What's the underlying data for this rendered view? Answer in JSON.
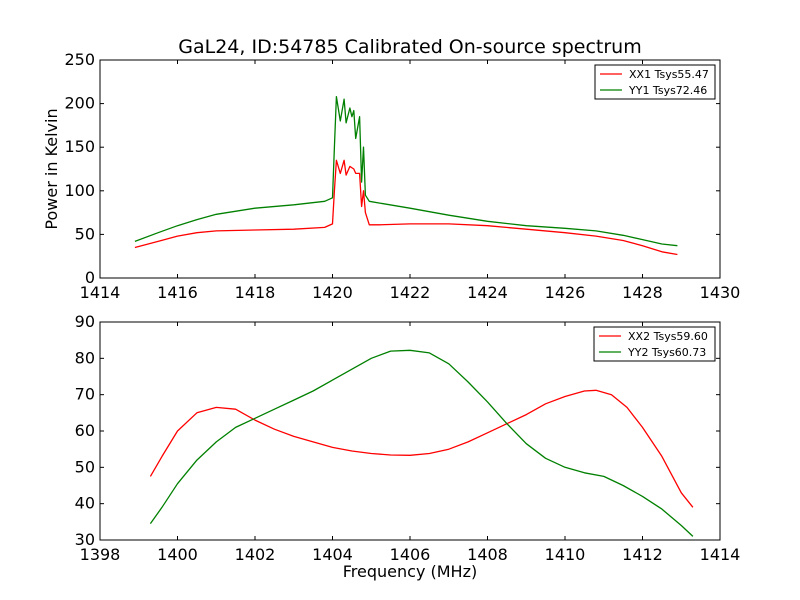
{
  "chart_data": [
    {
      "type": "line",
      "title": "GaL24, ID:54785 Calibrated On-source spectrum",
      "xlabel": "",
      "ylabel": "Power in Kelvin",
      "xlim": [
        1414,
        1430
      ],
      "ylim": [
        0,
        250
      ],
      "xticks": [
        1414,
        1416,
        1418,
        1420,
        1422,
        1424,
        1426,
        1428,
        1430
      ],
      "yticks": [
        0,
        50,
        100,
        150,
        200,
        250
      ],
      "grid": false,
      "legend_position": "top-right",
      "series": [
        {
          "name": "XX1 Tsys55.47",
          "color": "#ff0000",
          "x": [
            1414.9,
            1415.5,
            1416.0,
            1416.5,
            1417.0,
            1418.0,
            1419.0,
            1419.8,
            1420.0,
            1420.05,
            1420.1,
            1420.2,
            1420.3,
            1420.35,
            1420.45,
            1420.55,
            1420.6,
            1420.7,
            1420.75,
            1420.8,
            1420.85,
            1420.95,
            1421.2,
            1422.0,
            1423.0,
            1424.0,
            1425.0,
            1426.0,
            1426.8,
            1427.5,
            1428.0,
            1428.5,
            1428.9
          ],
          "y": [
            35,
            42,
            48,
            52,
            54,
            55,
            56,
            58,
            62,
            100,
            135,
            120,
            135,
            118,
            128,
            125,
            120,
            120,
            82,
            100,
            75,
            61,
            61,
            62,
            62,
            60,
            56,
            52,
            48,
            43,
            37,
            30,
            27
          ]
        },
        {
          "name": "YY1 Tsys72.46",
          "color": "#008000",
          "x": [
            1414.9,
            1415.5,
            1416.0,
            1416.5,
            1417.0,
            1418.0,
            1419.0,
            1419.8,
            1420.0,
            1420.05,
            1420.1,
            1420.2,
            1420.3,
            1420.35,
            1420.45,
            1420.5,
            1420.55,
            1420.6,
            1420.7,
            1420.75,
            1420.8,
            1420.85,
            1420.95,
            1421.2,
            1422.0,
            1423.0,
            1424.0,
            1425.0,
            1426.0,
            1426.8,
            1427.5,
            1428.0,
            1428.5,
            1428.9
          ],
          "y": [
            42,
            52,
            60,
            67,
            73,
            80,
            84,
            88,
            92,
            150,
            208,
            180,
            205,
            178,
            195,
            185,
            192,
            160,
            185,
            110,
            150,
            95,
            88,
            86,
            80,
            72,
            65,
            60,
            57,
            54,
            49,
            44,
            39,
            37
          ]
        }
      ]
    },
    {
      "type": "line",
      "title": "",
      "xlabel": "Frequency (MHz)",
      "ylabel": "",
      "xlim": [
        1398,
        1414
      ],
      "ylim": [
        30,
        90
      ],
      "xticks": [
        1398,
        1400,
        1402,
        1404,
        1406,
        1408,
        1410,
        1412,
        1414
      ],
      "yticks": [
        30,
        40,
        50,
        60,
        70,
        80,
        90
      ],
      "grid": false,
      "legend_position": "top-right",
      "series": [
        {
          "name": "XX2 Tsys59.60",
          "color": "#ff0000",
          "x": [
            1399.3,
            1399.6,
            1400.0,
            1400.5,
            1401.0,
            1401.5,
            1402.0,
            1402.5,
            1403.0,
            1403.5,
            1404.0,
            1404.5,
            1405.0,
            1405.5,
            1406.0,
            1406.5,
            1407.0,
            1407.5,
            1408.0,
            1408.5,
            1409.0,
            1409.5,
            1410.0,
            1410.5,
            1410.8,
            1411.2,
            1411.6,
            1412.0,
            1412.5,
            1413.0,
            1413.3
          ],
          "y": [
            47.5,
            53,
            60,
            65,
            66.5,
            66,
            63,
            60.5,
            58.5,
            57,
            55.5,
            54.5,
            53.8,
            53.4,
            53.3,
            53.8,
            55,
            57,
            59.5,
            62,
            64.5,
            67.5,
            69.5,
            71,
            71.2,
            70,
            66.5,
            61,
            53,
            43,
            39
          ]
        },
        {
          "name": "YY2 Tsys60.73",
          "color": "#008000",
          "x": [
            1399.3,
            1399.6,
            1400.0,
            1400.5,
            1401.0,
            1401.5,
            1402.0,
            1402.5,
            1403.0,
            1403.5,
            1404.0,
            1404.5,
            1405.0,
            1405.5,
            1406.0,
            1406.5,
            1407.0,
            1407.5,
            1408.0,
            1408.5,
            1409.0,
            1409.5,
            1410.0,
            1410.5,
            1411.0,
            1411.5,
            1412.0,
            1412.5,
            1413.0,
            1413.3
          ],
          "y": [
            34.5,
            39,
            45.5,
            52,
            57,
            61,
            63.5,
            66,
            68.5,
            71,
            74,
            77,
            80,
            82,
            82.2,
            81.5,
            78.5,
            73.5,
            68,
            62,
            56.5,
            52.5,
            50,
            48.5,
            47.5,
            45,
            42,
            38.5,
            34,
            31
          ]
        }
      ]
    }
  ]
}
